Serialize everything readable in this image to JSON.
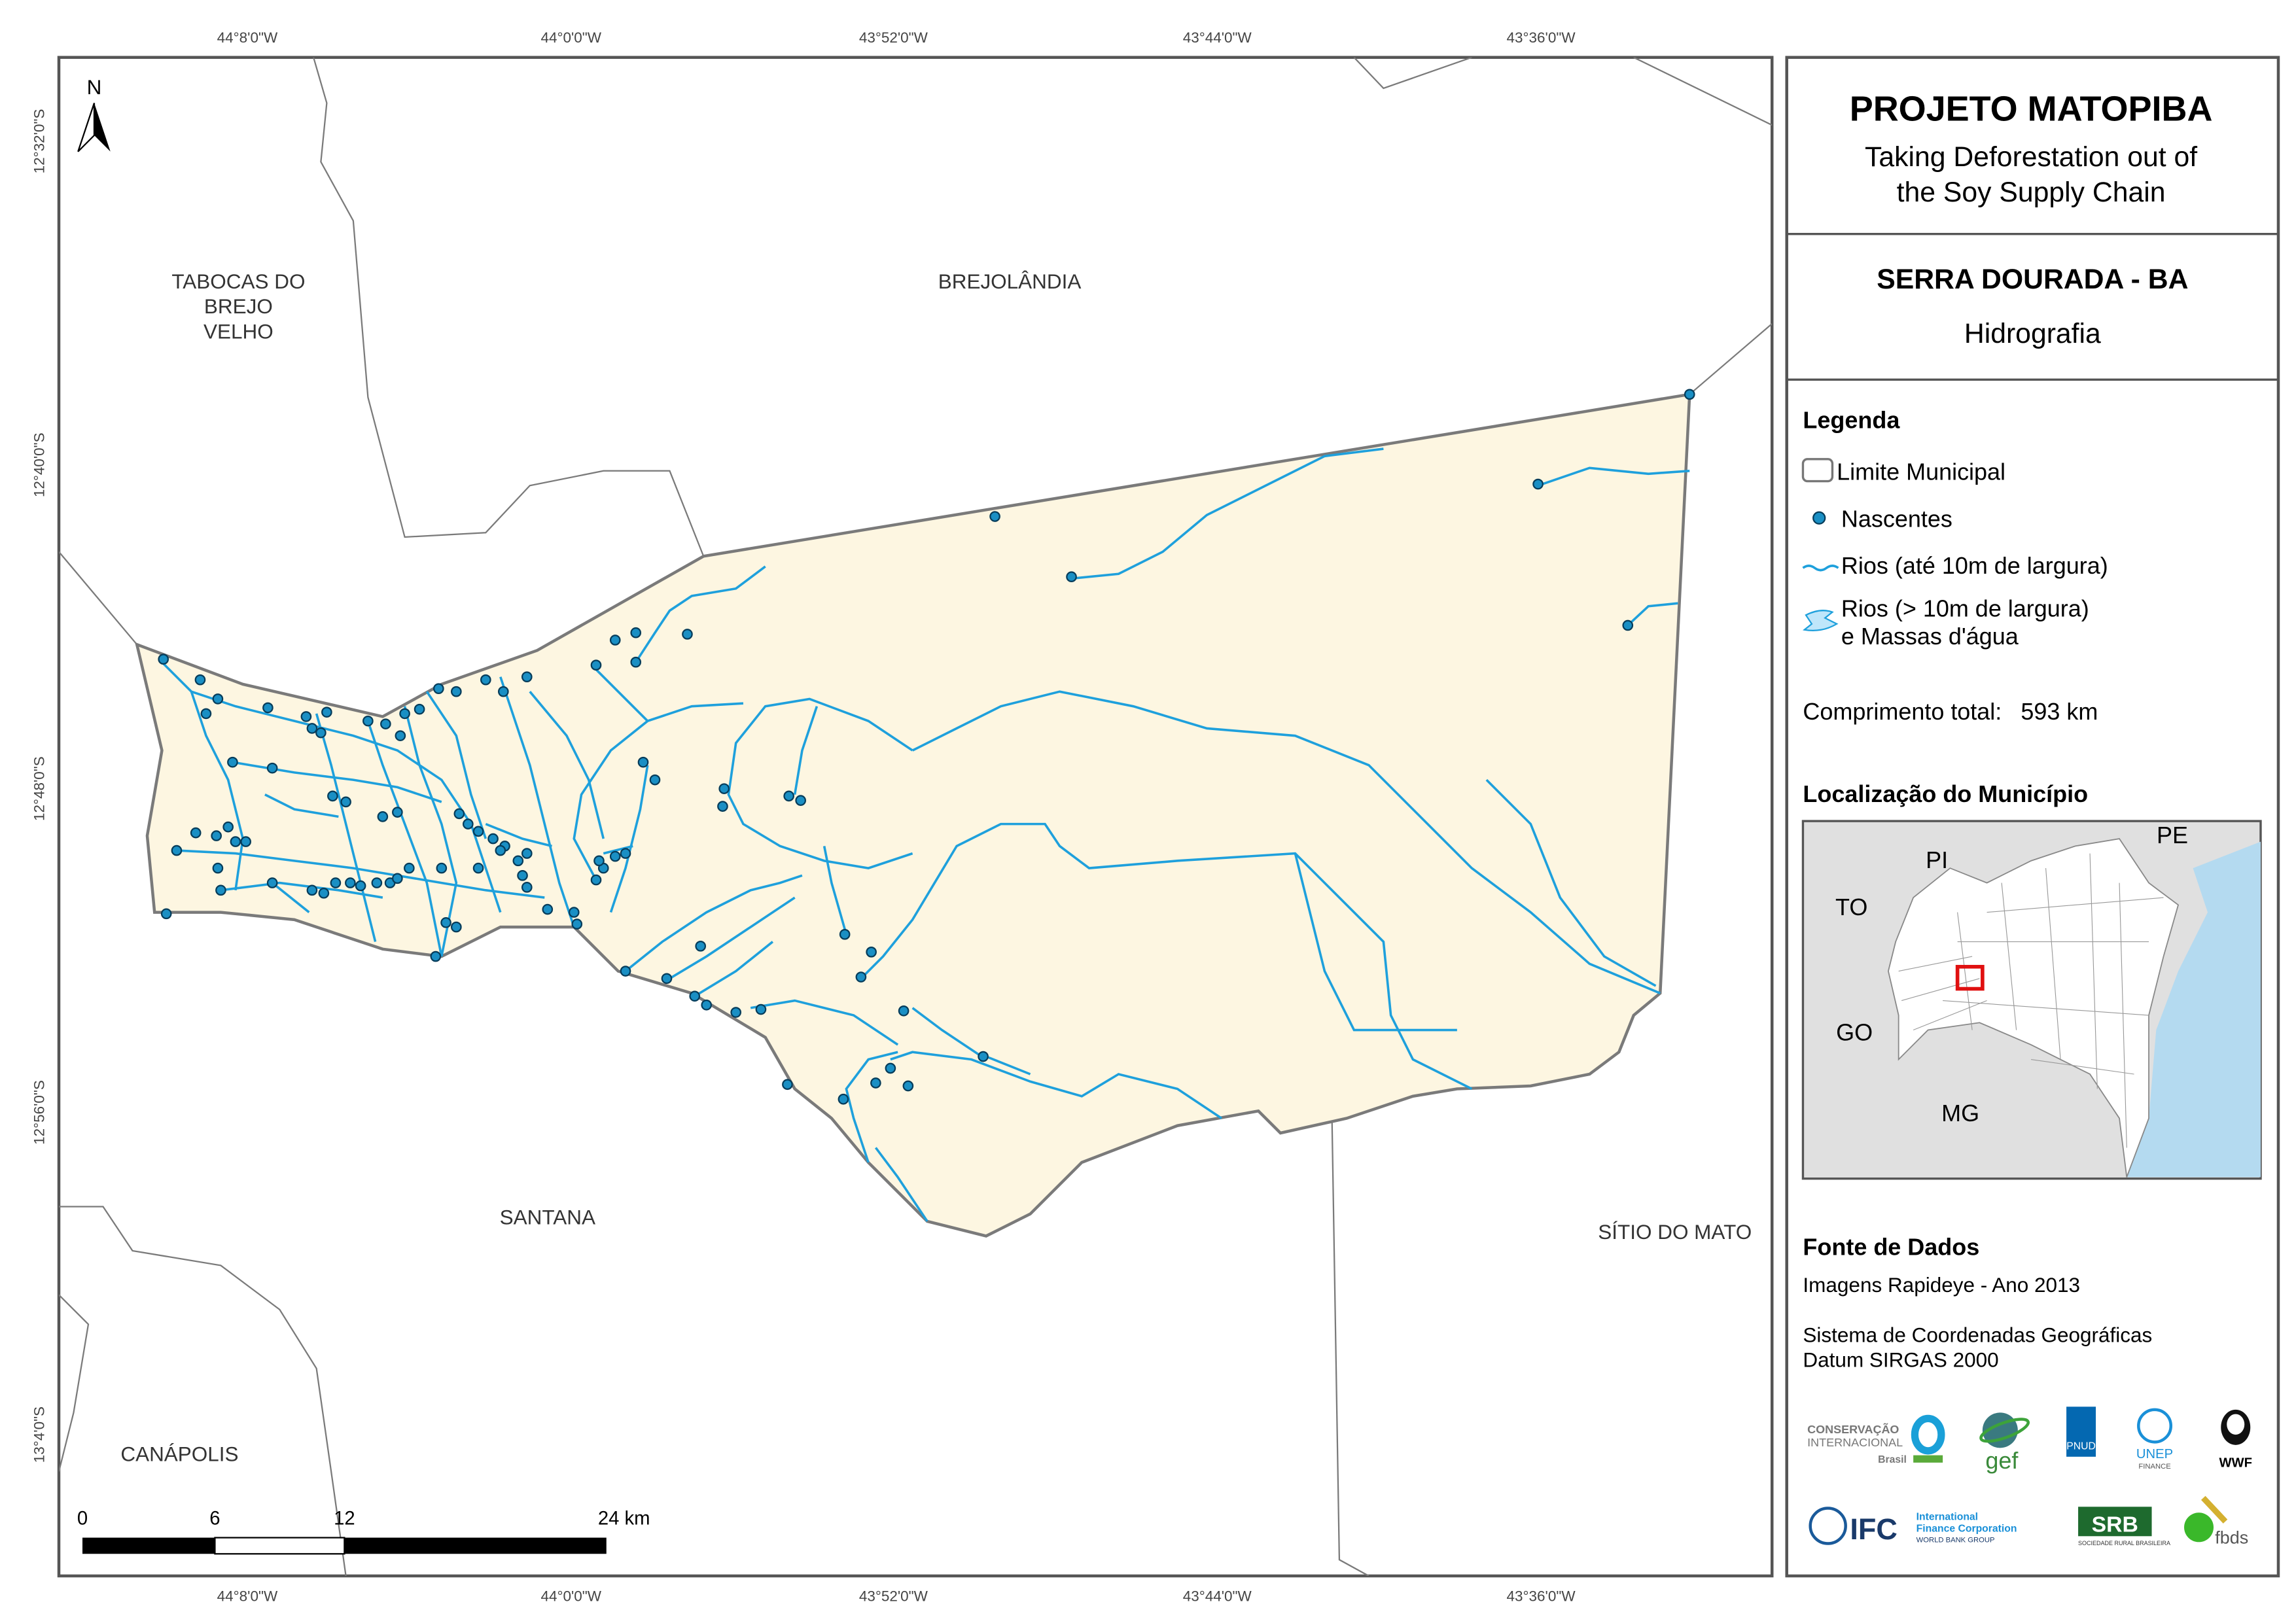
{
  "map": {
    "north_arrow": "N",
    "places": [
      "TABOCAS DO",
      "BREJO",
      "VELHO",
      "BREJOLÂNDIA",
      "SANTANA",
      "SÍTIO DO MATO",
      "CANÁPOLIS"
    ],
    "lon_ticks": [
      "44°8'0\"W",
      "44°0'0\"W",
      "43°52'0\"W",
      "43°44'0\"W",
      "43°36'0\"W"
    ],
    "lat_ticks": [
      "12°32'0\"S",
      "12°40'0\"S",
      "12°48'0\"S",
      "12°56'0\"S",
      "13°4'0\"S"
    ],
    "scale": [
      "0",
      "6",
      "12",
      "24 km"
    ],
    "colors": {
      "municipality_fill": "#fdf6e1",
      "river": "#1ea0dc",
      "spring": "#1a8fc4",
      "boundary": "#7a7a7a"
    }
  },
  "panel": {
    "title": "PROJETO MATOPIBA",
    "subtitle1": "Taking Deforestation out of",
    "subtitle2": "the Soy Supply Chain",
    "municipality": "SERRA DOURADA - BA",
    "theme": "Hidrografia",
    "legend": {
      "heading": "Legenda",
      "items": [
        "Limite Municipal",
        "Nascentes",
        "Rios (até 10m de largura)",
        "Rios (> 10m de largura)",
        "e Massas d'água"
      ],
      "total_label": "Comprimento total:",
      "total_value": "593 km"
    },
    "location": {
      "heading": "Localização do Município",
      "states": [
        "PI",
        "PE",
        "TO",
        "GO",
        "MG"
      ],
      "highlight_color": "#e01010",
      "sea_color": "#b4daf0"
    },
    "sources": {
      "heading": "Fonte de Dados",
      "line1": "Imagens Rapideye - Ano 2013",
      "line2": "Sistema de Coordenadas Geográficas",
      "line3": "Datum SIRGAS 2000"
    },
    "logos": [
      "CONSERVAÇÃO INTERNACIONAL Brasil",
      "gef",
      "PNUD",
      "UNEP FINANCE INITIATIVE",
      "WWF",
      "IFC International Finance Corporation WORLD BANK GROUP",
      "SRB SOCIEDADE RURAL BRASILEIRA",
      "fbds"
    ]
  }
}
